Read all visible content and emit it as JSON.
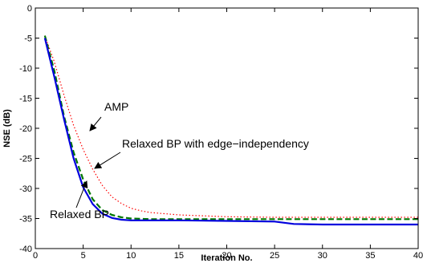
{
  "chart_data": {
    "type": "line",
    "xlabel": "Iteration No.",
    "ylabel": "NSE (dB)",
    "xlim": [
      0,
      40
    ],
    "ylim": [
      -40,
      0
    ],
    "xticks": [
      0,
      5,
      10,
      15,
      20,
      25,
      30,
      35,
      40
    ],
    "yticks": [
      0,
      -5,
      -10,
      -15,
      -20,
      -25,
      -30,
      -35,
      -40
    ],
    "grid": false,
    "legend": "none",
    "series": [
      {
        "key": "amp",
        "color": "#ff0000",
        "style": "dotted",
        "x": [
          1,
          2,
          3,
          4,
          5,
          6,
          7,
          8,
          9,
          10,
          11,
          12,
          15,
          20,
          25,
          30,
          35,
          40
        ],
        "y": [
          -4.6,
          -9.0,
          -14.5,
          -19.5,
          -23.5,
          -26.8,
          -29.5,
          -31.4,
          -32.5,
          -33.3,
          -33.7,
          -34.0,
          -34.4,
          -34.7,
          -34.8,
          -34.8,
          -34.8,
          -34.8
        ]
      },
      {
        "key": "edge-independency",
        "color": "#007700",
        "style": "dashed",
        "x": [
          1,
          2,
          3,
          4,
          5,
          6,
          7,
          8,
          9,
          10,
          12,
          15,
          20,
          25,
          30,
          35,
          40
        ],
        "y": [
          -4.6,
          -10.5,
          -18.0,
          -24.0,
          -28.5,
          -31.8,
          -33.6,
          -34.4,
          -34.8,
          -35.0,
          -35.1,
          -35.1,
          -35.1,
          -35.1,
          -35.1,
          -35.1,
          -35.1
        ]
      },
      {
        "key": "relaxed-bp",
        "color": "#0000dd",
        "style": "solid",
        "x": [
          1,
          2,
          3,
          4,
          5,
          6,
          7,
          8,
          9,
          10,
          12,
          15,
          20,
          25,
          27,
          30,
          35,
          40
        ],
        "y": [
          -5.0,
          -11.5,
          -18.5,
          -25.0,
          -29.8,
          -32.6,
          -34.2,
          -34.9,
          -35.2,
          -35.3,
          -35.3,
          -35.3,
          -35.4,
          -35.5,
          -35.9,
          -36.0,
          -36.0,
          -36.0
        ]
      }
    ],
    "annotations": [
      {
        "text": "AMP",
        "series": "amp"
      },
      {
        "text": "Relaxed BP with edge−independency",
        "series": "edge-independency"
      },
      {
        "text": "Relaxed BP",
        "series": "relaxed-bp"
      }
    ]
  }
}
